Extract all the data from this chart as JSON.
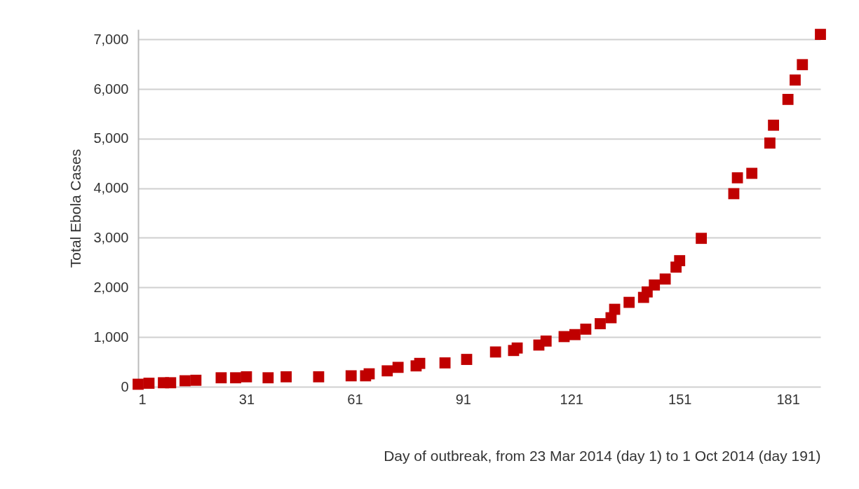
{
  "chart_data": {
    "type": "scatter",
    "xlabel": "Day of outbreak, from 23 Mar 2014 (day 1) to 1 Oct 2014 (day 191)",
    "ylabel": "Total Ebola Cases",
    "x": [
      1,
      4,
      8,
      10,
      14,
      17,
      24,
      28,
      31,
      37,
      42,
      51,
      60,
      64,
      65,
      70,
      73,
      78,
      79,
      86,
      92,
      100,
      105,
      106,
      112,
      114,
      119,
      122,
      125,
      129,
      132,
      133,
      137,
      141,
      142,
      144,
      147,
      150,
      151,
      157,
      166,
      167,
      171,
      176,
      177,
      181,
      183,
      185,
      190
    ],
    "series": [
      {
        "color": "#c00000",
        "values": [
          50,
          70,
          80,
          80,
          120,
          130,
          180,
          180,
          200,
          180,
          200,
          200,
          220,
          220,
          260,
          320,
          390,
          420,
          470,
          480,
          550,
          700,
          730,
          780,
          840,
          920,
          1010,
          1050,
          1160,
          1270,
          1390,
          1560,
          1700,
          1800,
          1910,
          2050,
          2170,
          2410,
          2540,
          2990,
          3890,
          4210,
          4300,
          4910,
          5270,
          5790,
          6180,
          6490,
          7100
        ]
      }
    ],
    "xlim": [
      1,
      190
    ],
    "xticks": [
      1,
      31,
      61,
      91,
      121,
      151,
      181
    ],
    "ylim": [
      0,
      7200
    ],
    "yticks": [
      {
        "value": 0,
        "label": "0"
      },
      {
        "value": 1000,
        "label": "1,000"
      },
      {
        "value": 2000,
        "label": "2,000"
      },
      {
        "value": 3000,
        "label": "3,000"
      },
      {
        "value": 4000,
        "label": "4,000"
      },
      {
        "value": 5000,
        "label": "5,000"
      },
      {
        "value": 6000,
        "label": "6,000"
      },
      {
        "value": 7000,
        "label": "7,000"
      }
    ],
    "grid": "y",
    "marker": "square",
    "legend": false
  }
}
